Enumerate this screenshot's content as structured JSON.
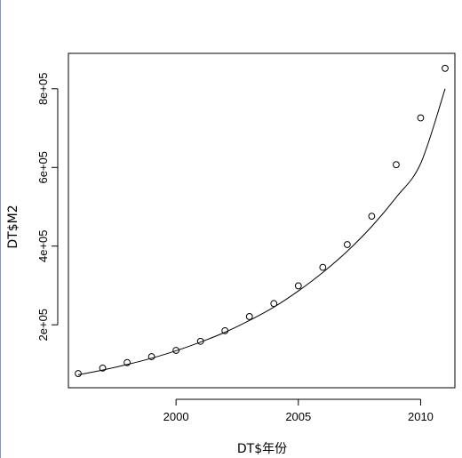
{
  "chart_data": {
    "type": "scatter",
    "xlabel": "DT$年份",
    "ylabel": "DT$M2",
    "xlim": [
      1995.6,
      2011.4
    ],
    "ylim": [
      40000,
      890000
    ],
    "x_ticks": [
      {
        "value": 2000,
        "label": "2000"
      },
      {
        "value": 2005,
        "label": "2005"
      },
      {
        "value": 2010,
        "label": "2010"
      }
    ],
    "y_ticks": [
      {
        "value": 200000,
        "label": "2e+05"
      },
      {
        "value": 400000,
        "label": "4e+05"
      },
      {
        "value": 600000,
        "label": "6e+05"
      },
      {
        "value": 800000,
        "label": "8e+05"
      }
    ],
    "series": [
      {
        "type": "scatter",
        "marker": "open-circle",
        "x": [
          1996,
          1997,
          1998,
          1999,
          2000,
          2001,
          2002,
          2003,
          2004,
          2005,
          2006,
          2007,
          2008,
          2009,
          2010,
          2011
        ],
        "y": [
          76000,
          90000,
          104000,
          119000,
          135000,
          158000,
          185000,
          221000,
          254000,
          299000,
          346000,
          404000,
          476000,
          607000,
          726000,
          852000
        ]
      },
      {
        "type": "line",
        "x": [
          1996,
          1997,
          1998,
          1999,
          2000,
          2001,
          2002,
          2003,
          2004,
          2005,
          2006,
          2007,
          2008,
          2009,
          2010,
          2011
        ],
        "y": [
          73000,
          85000,
          99000,
          115000,
          134000,
          156000,
          181000,
          211000,
          245000,
          286000,
          333000,
          387000,
          450000,
          524000,
          610000,
          800000
        ]
      }
    ],
    "grid": false,
    "box": true,
    "colors": {
      "points": "#000000",
      "line": "#000000",
      "axes": "#000000"
    }
  }
}
